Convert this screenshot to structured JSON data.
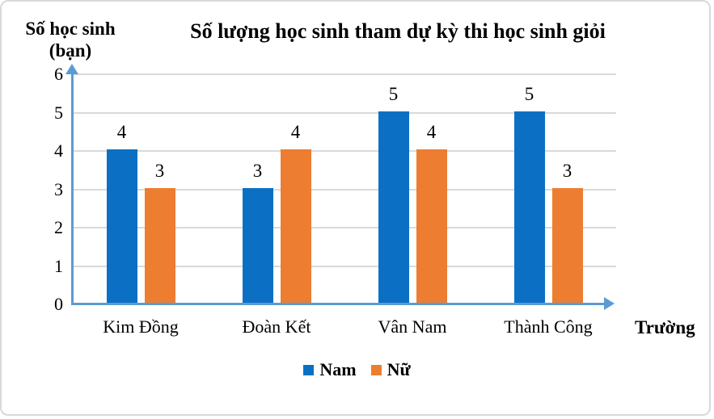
{
  "chart_data": {
    "type": "bar",
    "title": "Số lượng học sinh tham dự kỳ thi học sinh giỏi",
    "y_axis_title_line1": "Số học sinh",
    "y_axis_title_line2": "(bạn)",
    "x_axis_title": "Trường",
    "categories": [
      "Kim Đồng",
      "Đoàn Kết",
      "Vân Nam",
      "Thành Công"
    ],
    "series": [
      {
        "name": "Nam",
        "color": "#0B70C4",
        "values": [
          4,
          3,
          5,
          5
        ]
      },
      {
        "name": "Nữ",
        "color": "#ED7D31",
        "values": [
          3,
          4,
          4,
          3
        ]
      }
    ],
    "ylim": [
      0,
      6
    ],
    "yticks": [
      0,
      1,
      2,
      3,
      4,
      5,
      6
    ],
    "grid": true,
    "data_labels": true,
    "legend_position": "bottom",
    "colors": {
      "axis": "#5B9BD5",
      "gridline": "#D9D9D9",
      "frame_border": "#D9D9D9",
      "text": "#000000"
    }
  }
}
